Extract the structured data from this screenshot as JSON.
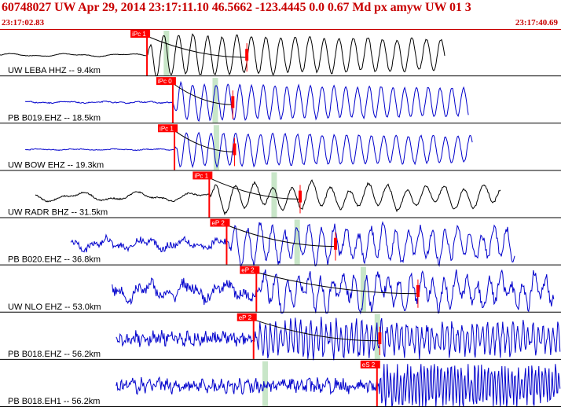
{
  "header": {
    "title": "60748027 UW Apr 29, 2014 23:17:11.10    46.5662 -123.4445  0.0 0.67 Md px amyw UW 01    3",
    "time_start": "23:17:02.83",
    "time_end": "23:17:40.69"
  },
  "colors": {
    "header_text": "#c80000",
    "separator": "#c80000",
    "pick": "#ff0000",
    "theoretical": "#c8e6c8",
    "trace_first": "#000000",
    "trace": "#0000cc",
    "coda": "#000000"
  },
  "traces": [
    {
      "label": "UW LEBA HHZ -- 9.4km",
      "color": "#000000",
      "pick_label": "iPc 1",
      "pick_time": 0.262,
      "theo_time": 0.296,
      "signal_start": 0.0,
      "signal_end": 0.793,
      "amplitude_window": 0.44,
      "coda_end": 0.44,
      "noise_level": 0.08,
      "event_amp": 0.95,
      "event_period": 0.026,
      "style": "smooth"
    },
    {
      "label": "PB B019.EHZ -- 18.5km",
      "color": "#0000cc",
      "pick_label": "iPc 0",
      "pick_time": 0.308,
      "theo_time": 0.383,
      "signal_start": 0.045,
      "signal_end": 0.836,
      "amplitude_window": 0.415,
      "coda_end": 0.415,
      "noise_level": 0.05,
      "event_amp": 0.85,
      "event_period": 0.021,
      "style": "noisy"
    },
    {
      "label": "UW BOW EHZ -- 19.3km",
      "color": "#0000cc",
      "pick_label": "iPc 1",
      "pick_time": 0.311,
      "theo_time": 0.385,
      "signal_start": 0.045,
      "signal_end": 0.843,
      "amplitude_window": 0.418,
      "coda_end": 0.44,
      "noise_level": 0.04,
      "event_amp": 0.8,
      "event_period": 0.022,
      "style": "noisy"
    },
    {
      "label": "UW RADR BHZ -- 31.5km",
      "color": "#000000",
      "pick_label": "iPc 1",
      "pick_time": 0.373,
      "theo_time": 0.488,
      "signal_start": 0.063,
      "signal_end": 0.893,
      "amplitude_window": 0.535,
      "coda_end": 0.55,
      "noise_level": 0.25,
      "event_amp": 0.55,
      "event_period": 0.034,
      "style": "smooth"
    },
    {
      "label": "PB B020.EHZ -- 36.8km",
      "color": "#0000cc",
      "pick_label": "eP 2",
      "pick_time": 0.404,
      "theo_time": 0.529,
      "signal_start": 0.126,
      "signal_end": 0.918,
      "amplitude_window": 0.598,
      "coda_end": 0.62,
      "noise_level": 0.35,
      "event_amp": 0.8,
      "event_period": 0.022,
      "style": "noisy"
    },
    {
      "label": "UW NLO EHZ -- 53.0km",
      "color": "#0000cc",
      "pick_label": "eP 2",
      "pick_time": 0.457,
      "theo_time": 0.647,
      "signal_start": 0.2,
      "signal_end": 0.988,
      "amplitude_window": 0.745,
      "coda_end": 0.768,
      "noise_level": 0.55,
      "event_amp": 0.7,
      "event_period": 0.02,
      "style": "noisy"
    },
    {
      "label": "PB B018.EHZ -- 56.2km",
      "color": "#0000cc",
      "pick_label": "eP 2",
      "pick_time": 0.452,
      "theo_time": 0.672,
      "signal_start": 0.207,
      "signal_end": 0.999,
      "amplitude_window": 0.677,
      "coda_end": 0.7,
      "noise_level": 0.4,
      "event_amp": 0.75,
      "event_period": 0.009,
      "style": "hf"
    },
    {
      "label": "PB B018.EH1 -- 56.2km",
      "color": "#0000cc",
      "pick_label": "eS 2",
      "pick_time": 0.672,
      "theo_time": 0.472,
      "signal_start": 0.207,
      "signal_end": 0.999,
      "amplitude_window": 0.0,
      "coda_end": 0.0,
      "noise_level": 0.4,
      "event_amp": 0.9,
      "event_period": 0.006,
      "style": "hf"
    }
  ]
}
